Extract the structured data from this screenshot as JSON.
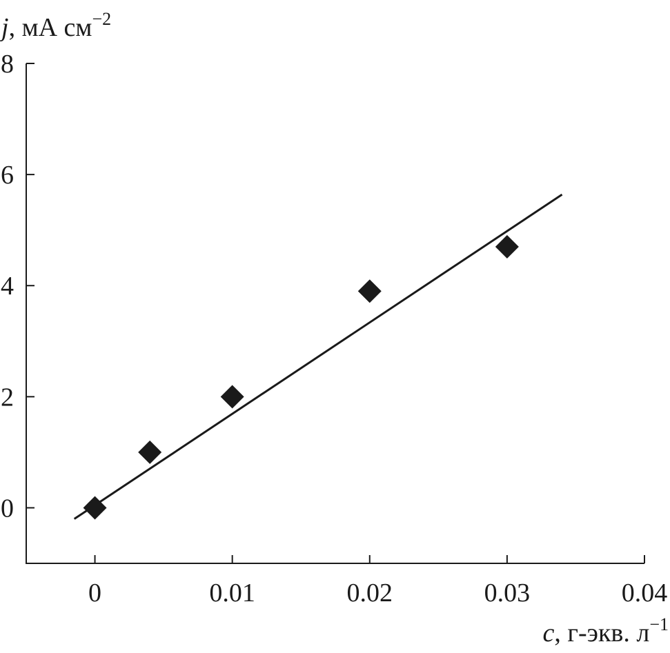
{
  "chart_data": {
    "type": "scatter",
    "x": [
      0,
      0.004,
      0.01,
      0.02,
      0.03
    ],
    "series": [
      {
        "values": [
          0,
          1,
          2,
          3.9,
          4.7
        ],
        "color": "#1a1a1a",
        "marker": "diamond"
      }
    ],
    "fit_line": {
      "x": [
        -0.0015,
        0.034
      ],
      "values": [
        -0.2,
        5.64
      ],
      "color": "#1a1a1a"
    },
    "xlim": [
      -0.005,
      0.04
    ],
    "xticks": [
      0,
      0.01,
      0.02,
      0.03,
      0.04
    ],
    "ylim": [
      -1,
      8
    ],
    "yticks": [
      0,
      2,
      4,
      6,
      8
    ],
    "xlabel": {
      "var": "c",
      "text": ", г-экв. л",
      "sup": "−1"
    },
    "ylabel": {
      "var": "j",
      "text": ", мА см",
      "sup": "−2"
    }
  }
}
